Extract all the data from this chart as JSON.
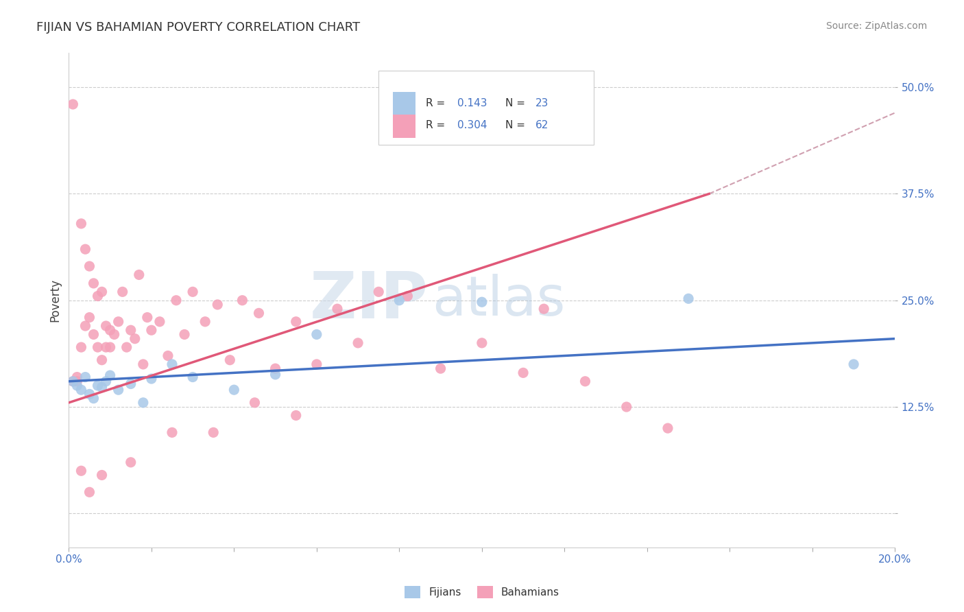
{
  "title": "FIJIAN VS BAHAMIAN POVERTY CORRELATION CHART",
  "source_text": "Source: ZipAtlas.com",
  "ylabel": "Poverty",
  "xlim": [
    0.0,
    0.2
  ],
  "ylim": [
    -0.04,
    0.54
  ],
  "yticks": [
    0.0,
    0.125,
    0.25,
    0.375,
    0.5
  ],
  "ytick_labels": [
    "",
    "12.5%",
    "25.0%",
    "37.5%",
    "50.0%"
  ],
  "xticks": [
    0.0,
    0.02,
    0.04,
    0.06,
    0.08,
    0.1,
    0.12,
    0.14,
    0.16,
    0.18,
    0.2
  ],
  "xtick_labels": [
    "0.0%",
    "",
    "",
    "",
    "",
    "",
    "",
    "",
    "",
    "",
    "20.0%"
  ],
  "fijian_color": "#a8c8e8",
  "bahamian_color": "#f4a0b8",
  "fijian_line_color": "#4472c4",
  "bahamian_line_color": "#e05878",
  "trend_ext_color": "#d0a0b0",
  "R_fijian": 0.143,
  "N_fijian": 23,
  "R_bahamian": 0.304,
  "N_bahamian": 62,
  "watermark_zip": "ZIP",
  "watermark_atlas": "atlas",
  "background_color": "#ffffff",
  "fij_trend_x0": 0.0,
  "fij_trend_y0": 0.155,
  "fij_trend_x1": 0.2,
  "fij_trend_y1": 0.205,
  "bah_trend_x0": 0.0,
  "bah_trend_y0": 0.13,
  "bah_trend_x1": 0.155,
  "bah_trend_y1": 0.375,
  "bah_trend_ext_x1": 0.2,
  "bah_trend_ext_y1": 0.47,
  "fijians_x": [
    0.001,
    0.002,
    0.003,
    0.004,
    0.005,
    0.006,
    0.007,
    0.008,
    0.009,
    0.01,
    0.012,
    0.015,
    0.018,
    0.02,
    0.025,
    0.03,
    0.04,
    0.05,
    0.06,
    0.08,
    0.1,
    0.15,
    0.19
  ],
  "fijians_y": [
    0.155,
    0.15,
    0.145,
    0.16,
    0.14,
    0.135,
    0.15,
    0.148,
    0.155,
    0.162,
    0.145,
    0.152,
    0.13,
    0.158,
    0.175,
    0.16,
    0.145,
    0.163,
    0.21,
    0.25,
    0.248,
    0.252,
    0.175
  ],
  "bahamians_x": [
    0.001,
    0.001,
    0.002,
    0.002,
    0.003,
    0.003,
    0.004,
    0.004,
    0.005,
    0.005,
    0.006,
    0.006,
    0.007,
    0.007,
    0.008,
    0.008,
    0.009,
    0.009,
    0.01,
    0.01,
    0.011,
    0.012,
    0.013,
    0.014,
    0.015,
    0.016,
    0.017,
    0.018,
    0.019,
    0.02,
    0.022,
    0.024,
    0.026,
    0.028,
    0.03,
    0.033,
    0.036,
    0.039,
    0.042,
    0.046,
    0.05,
    0.055,
    0.06,
    0.065,
    0.07,
    0.075,
    0.082,
    0.09,
    0.1,
    0.11,
    0.115,
    0.125,
    0.135,
    0.145,
    0.055,
    0.045,
    0.035,
    0.025,
    0.015,
    0.008,
    0.005,
    0.003
  ],
  "bahamians_y": [
    0.48,
    0.155,
    0.16,
    0.155,
    0.34,
    0.195,
    0.31,
    0.22,
    0.29,
    0.23,
    0.27,
    0.21,
    0.255,
    0.195,
    0.26,
    0.18,
    0.22,
    0.195,
    0.215,
    0.195,
    0.21,
    0.225,
    0.26,
    0.195,
    0.215,
    0.205,
    0.28,
    0.175,
    0.23,
    0.215,
    0.225,
    0.185,
    0.25,
    0.21,
    0.26,
    0.225,
    0.245,
    0.18,
    0.25,
    0.235,
    0.17,
    0.225,
    0.175,
    0.24,
    0.2,
    0.26,
    0.255,
    0.17,
    0.2,
    0.165,
    0.24,
    0.155,
    0.125,
    0.1,
    0.115,
    0.13,
    0.095,
    0.095,
    0.06,
    0.045,
    0.025,
    0.05
  ]
}
